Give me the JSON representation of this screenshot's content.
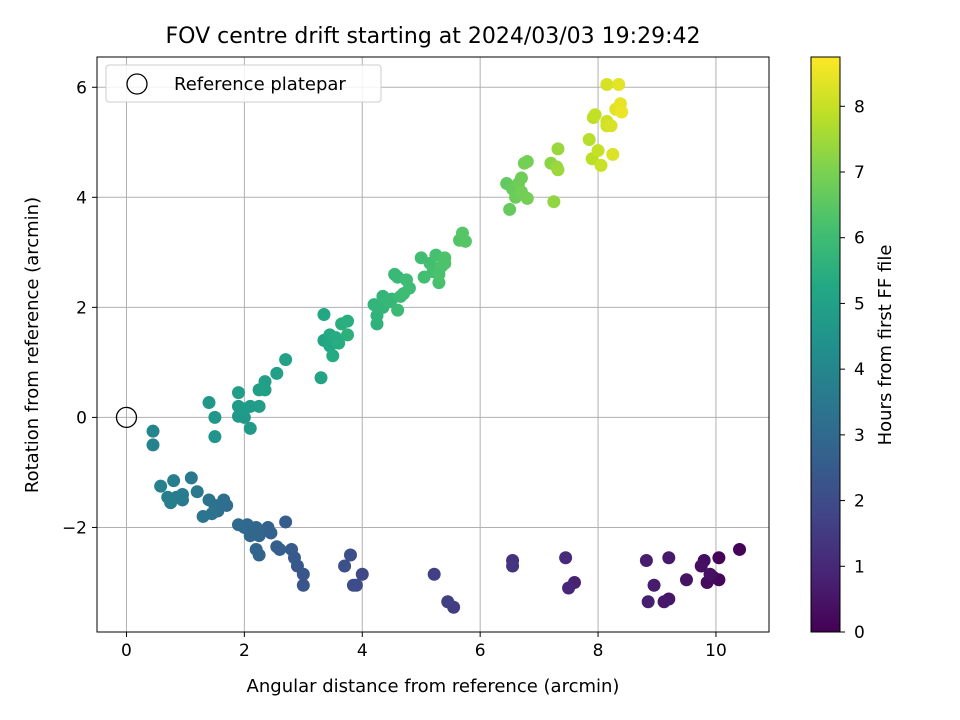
{
  "chart_data": {
    "type": "scatter",
    "title": "FOV centre drift starting at 2024/03/03 19:29:42",
    "xlabel": "Angular distance from reference (arcmin)",
    "ylabel": "Rotation from reference (arcmin)",
    "xlim": [
      -0.5,
      10.9
    ],
    "ylim": [
      -3.9,
      6.55
    ],
    "xticks": [
      0,
      2,
      4,
      6,
      8,
      10
    ],
    "xtick_labels": [
      "0",
      "2",
      "4",
      "6",
      "8",
      "10"
    ],
    "yticks": [
      -2,
      0,
      2,
      4,
      6
    ],
    "ytick_labels": [
      "−2",
      "0",
      "2",
      "4",
      "6"
    ],
    "grid": true,
    "legend": {
      "placement": "upper-left",
      "entries": [
        "Reference platepar"
      ]
    },
    "colorbar": {
      "label": "Hours from first FF file",
      "colormap": "viridis",
      "range": [
        0,
        8.75
      ],
      "ticks": [
        0,
        1,
        2,
        3,
        4,
        5,
        6,
        7,
        8
      ],
      "tick_labels": [
        "0",
        "1",
        "2",
        "3",
        "4",
        "5",
        "6",
        "7",
        "8"
      ]
    },
    "reference": {
      "name": "Reference platepar",
      "x": 0,
      "y": 0
    },
    "points": [
      {
        "x": 10.4,
        "y": -2.4,
        "c": 0.05
      },
      {
        "x": 10.05,
        "y": -2.55,
        "c": 0.1
      },
      {
        "x": 10.05,
        "y": -2.95,
        "c": 0.15
      },
      {
        "x": 9.95,
        "y": -2.9,
        "c": 0.2
      },
      {
        "x": 9.85,
        "y": -3.0,
        "c": 0.25
      },
      {
        "x": 9.8,
        "y": -2.6,
        "c": 0.3
      },
      {
        "x": 9.75,
        "y": -2.7,
        "c": 0.35
      },
      {
        "x": 9.9,
        "y": -2.85,
        "c": 0.4
      },
      {
        "x": 9.5,
        "y": -2.95,
        "c": 0.45
      },
      {
        "x": 9.2,
        "y": -3.3,
        "c": 0.5
      },
      {
        "x": 9.12,
        "y": -3.35,
        "c": 0.55
      },
      {
        "x": 9.2,
        "y": -2.55,
        "c": 0.6
      },
      {
        "x": 8.95,
        "y": -3.05,
        "c": 0.65
      },
      {
        "x": 8.82,
        "y": -2.6,
        "c": 0.7
      },
      {
        "x": 8.85,
        "y": -3.35,
        "c": 0.75
      },
      {
        "x": 7.6,
        "y": -3.0,
        "c": 0.85
      },
      {
        "x": 7.5,
        "y": -3.1,
        "c": 0.95
      },
      {
        "x": 7.45,
        "y": -2.55,
        "c": 1.05
      },
      {
        "x": 6.55,
        "y": -2.6,
        "c": 1.25
      },
      {
        "x": 6.55,
        "y": -2.7,
        "c": 1.3
      },
      {
        "x": 5.55,
        "y": -3.45,
        "c": 1.55
      },
      {
        "x": 5.45,
        "y": -3.35,
        "c": 1.6
      },
      {
        "x": 5.22,
        "y": -2.85,
        "c": 1.65
      },
      {
        "x": 4.0,
        "y": -2.85,
        "c": 1.9
      },
      {
        "x": 3.9,
        "y": -3.05,
        "c": 2.0
      },
      {
        "x": 3.85,
        "y": -3.05,
        "c": 2.05
      },
      {
        "x": 3.8,
        "y": -2.5,
        "c": 2.1
      },
      {
        "x": 3.7,
        "y": -2.7,
        "c": 2.15
      },
      {
        "x": 3.0,
        "y": -3.05,
        "c": 2.3
      },
      {
        "x": 3.0,
        "y": -2.85,
        "c": 2.35
      },
      {
        "x": 2.9,
        "y": -2.7,
        "c": 2.4
      },
      {
        "x": 2.85,
        "y": -2.55,
        "c": 2.45
      },
      {
        "x": 2.8,
        "y": -2.4,
        "c": 2.5
      },
      {
        "x": 2.7,
        "y": -1.9,
        "c": 2.55
      },
      {
        "x": 2.6,
        "y": -2.4,
        "c": 2.6
      },
      {
        "x": 2.55,
        "y": -2.35,
        "c": 2.65
      },
      {
        "x": 2.45,
        "y": -2.1,
        "c": 2.7
      },
      {
        "x": 2.4,
        "y": -2.0,
        "c": 2.75
      },
      {
        "x": 2.25,
        "y": -2.5,
        "c": 2.8
      },
      {
        "x": 2.25,
        "y": -2.15,
        "c": 2.82
      },
      {
        "x": 2.2,
        "y": -2.4,
        "c": 2.85
      },
      {
        "x": 2.2,
        "y": -2.0,
        "c": 2.88
      },
      {
        "x": 2.1,
        "y": -2.15,
        "c": 2.9
      },
      {
        "x": 2.05,
        "y": -1.95,
        "c": 2.93
      },
      {
        "x": 2.0,
        "y": -2.0,
        "c": 2.95
      },
      {
        "x": 1.9,
        "y": -1.95,
        "c": 3.0
      },
      {
        "x": 1.7,
        "y": -1.6,
        "c": 3.1
      },
      {
        "x": 1.65,
        "y": -1.5,
        "c": 3.15
      },
      {
        "x": 1.55,
        "y": -1.7,
        "c": 3.2
      },
      {
        "x": 1.5,
        "y": -1.6,
        "c": 3.25
      },
      {
        "x": 1.45,
        "y": -1.75,
        "c": 3.3
      },
      {
        "x": 1.4,
        "y": -1.5,
        "c": 3.35
      },
      {
        "x": 1.3,
        "y": -1.8,
        "c": 3.4
      },
      {
        "x": 1.2,
        "y": -1.35,
        "c": 3.45
      },
      {
        "x": 1.1,
        "y": -1.1,
        "c": 3.5
      },
      {
        "x": 0.95,
        "y": -1.5,
        "c": 3.55
      },
      {
        "x": 0.95,
        "y": -1.4,
        "c": 3.6
      },
      {
        "x": 0.85,
        "y": -1.45,
        "c": 3.65
      },
      {
        "x": 0.8,
        "y": -1.15,
        "c": 3.7
      },
      {
        "x": 0.75,
        "y": -1.55,
        "c": 3.72
      },
      {
        "x": 0.7,
        "y": -1.45,
        "c": 3.75
      },
      {
        "x": 0.58,
        "y": -1.25,
        "c": 3.8
      },
      {
        "x": 0.45,
        "y": -0.5,
        "c": 3.9
      },
      {
        "x": 0.45,
        "y": -0.25,
        "c": 3.95
      },
      {
        "x": 1.5,
        "y": -0.35,
        "c": 4.5
      },
      {
        "x": 1.5,
        "y": 0.0,
        "c": 4.55
      },
      {
        "x": 1.4,
        "y": 0.27,
        "c": 4.6
      },
      {
        "x": 1.9,
        "y": 0.02,
        "c": 4.65
      },
      {
        "x": 2.0,
        "y": 0.0,
        "c": 4.68
      },
      {
        "x": 1.9,
        "y": 0.2,
        "c": 4.7
      },
      {
        "x": 2.1,
        "y": -0.2,
        "c": 4.72
      },
      {
        "x": 2.0,
        "y": 0.15,
        "c": 4.75
      },
      {
        "x": 2.1,
        "y": 0.2,
        "c": 4.8
      },
      {
        "x": 2.25,
        "y": 0.2,
        "c": 4.83
      },
      {
        "x": 1.9,
        "y": 0.45,
        "c": 4.85
      },
      {
        "x": 2.25,
        "y": 0.5,
        "c": 4.88
      },
      {
        "x": 2.35,
        "y": 0.5,
        "c": 4.9
      },
      {
        "x": 2.35,
        "y": 0.65,
        "c": 4.92
      },
      {
        "x": 2.55,
        "y": 0.8,
        "c": 4.95
      },
      {
        "x": 2.7,
        "y": 1.05,
        "c": 5.0
      },
      {
        "x": 3.3,
        "y": 0.72,
        "c": 5.1
      },
      {
        "x": 3.35,
        "y": 1.4,
        "c": 5.15
      },
      {
        "x": 3.35,
        "y": 1.87,
        "c": 5.2
      },
      {
        "x": 3.45,
        "y": 1.3,
        "c": 5.25
      },
      {
        "x": 3.45,
        "y": 1.5,
        "c": 5.3
      },
      {
        "x": 3.5,
        "y": 1.12,
        "c": 5.32
      },
      {
        "x": 3.55,
        "y": 1.45,
        "c": 5.35
      },
      {
        "x": 3.6,
        "y": 1.35,
        "c": 5.4
      },
      {
        "x": 3.65,
        "y": 1.7,
        "c": 5.45
      },
      {
        "x": 3.75,
        "y": 1.75,
        "c": 5.5
      },
      {
        "x": 3.75,
        "y": 1.5,
        "c": 5.55
      },
      {
        "x": 4.25,
        "y": 1.7,
        "c": 5.6
      },
      {
        "x": 4.25,
        "y": 1.85,
        "c": 5.65
      },
      {
        "x": 4.2,
        "y": 2.05,
        "c": 5.7
      },
      {
        "x": 4.35,
        "y": 2.0,
        "c": 5.72
      },
      {
        "x": 4.35,
        "y": 2.2,
        "c": 5.75
      },
      {
        "x": 4.45,
        "y": 2.1,
        "c": 5.78
      },
      {
        "x": 4.5,
        "y": 2.15,
        "c": 5.8
      },
      {
        "x": 4.55,
        "y": 2.6,
        "c": 5.85
      },
      {
        "x": 4.6,
        "y": 2.55,
        "c": 5.87
      },
      {
        "x": 4.6,
        "y": 1.95,
        "c": 5.9
      },
      {
        "x": 4.65,
        "y": 2.2,
        "c": 5.92
      },
      {
        "x": 4.7,
        "y": 2.25,
        "c": 5.95
      },
      {
        "x": 4.75,
        "y": 2.5,
        "c": 5.97
      },
      {
        "x": 4.8,
        "y": 2.35,
        "c": 6.0
      },
      {
        "x": 5.0,
        "y": 2.9,
        "c": 6.05
      },
      {
        "x": 5.05,
        "y": 2.55,
        "c": 6.08
      },
      {
        "x": 5.15,
        "y": 2.8,
        "c": 6.1
      },
      {
        "x": 5.2,
        "y": 2.65,
        "c": 6.12
      },
      {
        "x": 5.25,
        "y": 2.95,
        "c": 6.15
      },
      {
        "x": 5.3,
        "y": 2.45,
        "c": 6.18
      },
      {
        "x": 5.3,
        "y": 2.6,
        "c": 6.2
      },
      {
        "x": 5.35,
        "y": 2.75,
        "c": 6.22
      },
      {
        "x": 5.4,
        "y": 2.9,
        "c": 6.25
      },
      {
        "x": 5.4,
        "y": 2.8,
        "c": 6.28
      },
      {
        "x": 5.65,
        "y": 3.22,
        "c": 6.35
      },
      {
        "x": 5.7,
        "y": 3.35,
        "c": 6.4
      },
      {
        "x": 5.75,
        "y": 3.2,
        "c": 6.42
      },
      {
        "x": 6.45,
        "y": 4.25,
        "c": 6.6
      },
      {
        "x": 6.5,
        "y": 3.78,
        "c": 6.65
      },
      {
        "x": 6.55,
        "y": 4.15,
        "c": 6.7
      },
      {
        "x": 6.6,
        "y": 4.0,
        "c": 6.75
      },
      {
        "x": 6.65,
        "y": 4.25,
        "c": 6.8
      },
      {
        "x": 6.7,
        "y": 4.35,
        "c": 6.82
      },
      {
        "x": 6.7,
        "y": 4.1,
        "c": 6.85
      },
      {
        "x": 6.75,
        "y": 4.62,
        "c": 6.88
      },
      {
        "x": 6.8,
        "y": 4.65,
        "c": 6.9
      },
      {
        "x": 6.8,
        "y": 3.98,
        "c": 6.92
      },
      {
        "x": 7.2,
        "y": 4.62,
        "c": 7.2
      },
      {
        "x": 7.25,
        "y": 3.92,
        "c": 7.3
      },
      {
        "x": 7.3,
        "y": 4.55,
        "c": 7.35
      },
      {
        "x": 7.32,
        "y": 4.88,
        "c": 7.4
      },
      {
        "x": 7.32,
        "y": 4.5,
        "c": 7.45
      },
      {
        "x": 7.85,
        "y": 5.05,
        "c": 7.8
      },
      {
        "x": 7.9,
        "y": 4.7,
        "c": 7.85
      },
      {
        "x": 7.92,
        "y": 5.45,
        "c": 7.9
      },
      {
        "x": 7.95,
        "y": 5.5,
        "c": 7.95
      },
      {
        "x": 8.0,
        "y": 4.85,
        "c": 8.0
      },
      {
        "x": 8.05,
        "y": 4.58,
        "c": 8.05
      },
      {
        "x": 8.15,
        "y": 5.38,
        "c": 8.1
      },
      {
        "x": 8.15,
        "y": 5.3,
        "c": 8.15
      },
      {
        "x": 8.15,
        "y": 6.05,
        "c": 8.2
      },
      {
        "x": 8.22,
        "y": 5.3,
        "c": 8.25
      },
      {
        "x": 8.25,
        "y": 4.78,
        "c": 8.3
      },
      {
        "x": 8.3,
        "y": 5.6,
        "c": 8.35
      },
      {
        "x": 8.35,
        "y": 6.05,
        "c": 8.4
      },
      {
        "x": 8.38,
        "y": 5.7,
        "c": 8.45
      },
      {
        "x": 8.4,
        "y": 5.55,
        "c": 8.5
      }
    ]
  }
}
